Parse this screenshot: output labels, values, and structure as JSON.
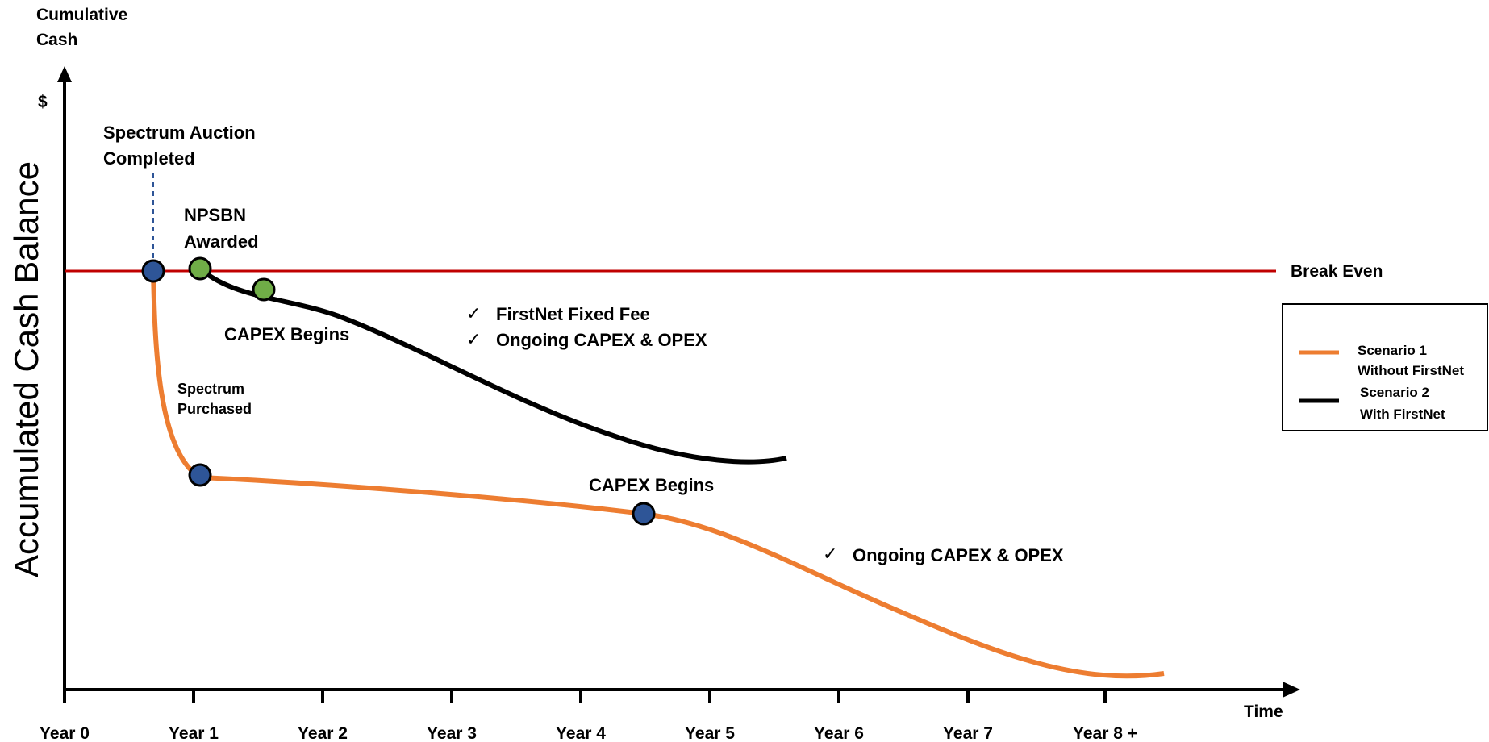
{
  "colors": {
    "scenario1": "#ED7D31",
    "scenario2": "#000000",
    "break_even": "#C00000",
    "marker_blue": "#2E5597",
    "marker_green": "#70AD47",
    "dashed": "#2E5597"
  },
  "axes": {
    "y_title_line1": "Cumulative",
    "y_title_line2": "Cash",
    "y_unit": "$",
    "y_label": "Accumulated Cash Balance",
    "x_label": "Time",
    "x_ticks": [
      "Year 0",
      "Year 1",
      "Year 2",
      "Year 3",
      "Year 4",
      "Year 5",
      "Year 6",
      "Year 7",
      "Year 8 +"
    ]
  },
  "break_even_label": "Break Even",
  "annotations": {
    "auction_line1": "Spectrum Auction",
    "auction_line2": "Completed",
    "npsbn_line1": "NPSBN",
    "npsbn_line2": "Awarded",
    "capex_begins_s2": "CAPEX Begins",
    "fixed_fee": "FirstNet Fixed Fee",
    "ongoing_s2": "Ongoing CAPEX & OPEX",
    "spectrum_purchased_line1": "Spectrum",
    "spectrum_purchased_line2": "Purchased",
    "capex_begins_s1": "CAPEX Begins",
    "ongoing_s1": "Ongoing CAPEX & OPEX",
    "check": "✓"
  },
  "legend": {
    "s1_line1": "Scenario 1",
    "s1_line2": "Without FirstNet",
    "s2_line1": "Scenario 2",
    "s2_line2": "With FirstNet"
  }
}
